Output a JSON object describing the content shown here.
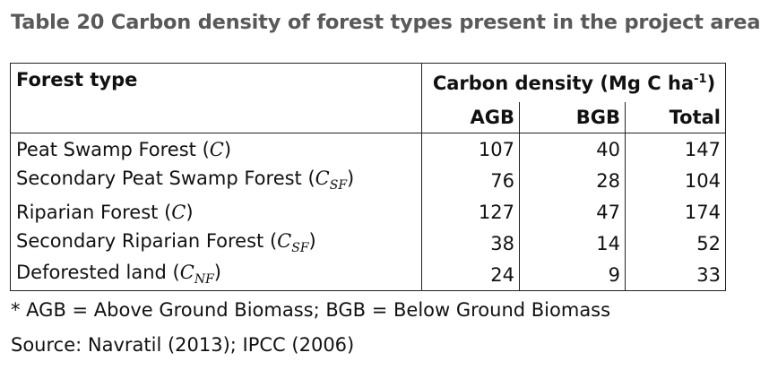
{
  "caption": "Table 20 Carbon density of forest types present in the project area",
  "table": {
    "col_header": "Forest type",
    "group_header": "Carbon density (Mg C ha",
    "group_header_sup": "-1",
    "group_header_close": ")",
    "sub_headers": [
      "AGB",
      "BGB",
      "Total"
    ],
    "rows": [
      {
        "name": "Peat Swamp Forest (",
        "symbol": "C",
        "sub": "",
        "close": ")",
        "agb": "107",
        "bgb": "40",
        "total": "147"
      },
      {
        "name": "Secondary Peat Swamp Forest (",
        "symbol": "C",
        "sub": "SF",
        "close": ")",
        "agb": "76",
        "bgb": "28",
        "total": "104"
      },
      {
        "name": "Riparian Forest (",
        "symbol": "C",
        "sub": "",
        "close": ")",
        "agb": "127",
        "bgb": "47",
        "total": "174"
      },
      {
        "name": "Secondary Riparian Forest (",
        "symbol": "C",
        "sub": "SF",
        "close": ")",
        "agb": "38",
        "bgb": "14",
        "total": "52"
      },
      {
        "name": "Deforested land (",
        "symbol": "C",
        "sub": "NF",
        "close": ")",
        "agb": "24",
        "bgb": "9",
        "total": "33"
      }
    ]
  },
  "footnote": "* AGB = Above Ground Biomass; BGB = Below Ground Biomass",
  "source": "Source: Navratil (2013); IPCC (2006)"
}
